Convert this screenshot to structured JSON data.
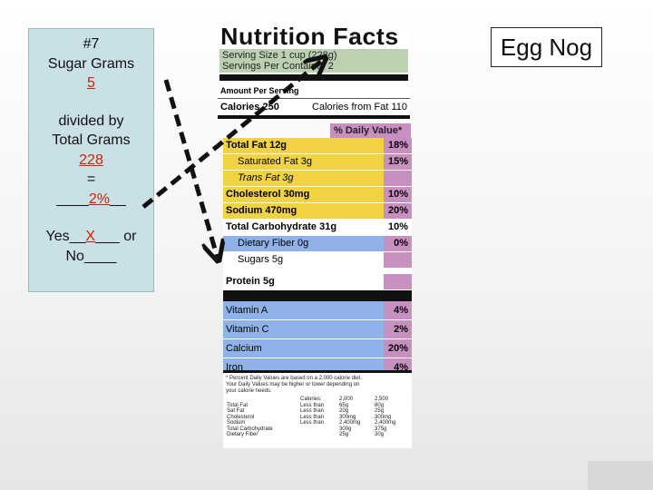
{
  "info": {
    "number": "#7",
    "line1": "Sugar Grams",
    "sugar": "5",
    "line2": "divided by",
    "line3": "Total Grams",
    "total": "228",
    "equals": "=",
    "blank_left": "____",
    "pct": "2%",
    "blank_right": "__",
    "yes_pre": "Yes__",
    "yes_mark": "X",
    "yes_post": "___ or",
    "no": "No____"
  },
  "product_name": "Egg Nog",
  "label": {
    "title": "Nutrition Facts",
    "serving_size": "Serving Size 1 cup (228g)",
    "servings_per_container": "Servings Per Container 2",
    "amount_per_serving": "Amount Per Serving",
    "calories": "Calories 250",
    "calories_fat": "Calories from Fat 110",
    "daily_value_head": "% Daily Value*",
    "nutrients": [
      {
        "name": "Total Fat 12g",
        "pct": "18%",
        "color": "#f1d243",
        "indent": false,
        "bold": true
      },
      {
        "name": "Saturated Fat 3g",
        "pct": "15%",
        "color": "#f1d243",
        "indent": true,
        "bold": false
      },
      {
        "name": "Trans Fat 3g",
        "pct": "",
        "color": "#f1d243",
        "indent": true,
        "bold": false
      },
      {
        "name": "Cholesterol 30mg",
        "pct": "10%",
        "color": "#f1d243",
        "indent": false,
        "bold": true
      },
      {
        "name": "Sodium 470mg",
        "pct": "20%",
        "color": "#f1d243",
        "indent": false,
        "bold": true
      },
      {
        "name": "Total Carbohydrate 31g",
        "pct": "10%",
        "color": "#ffffff",
        "indent": false,
        "bold": true
      },
      {
        "name": "Dietary Fiber 0g",
        "pct": "0%",
        "color": "#8fb3e8",
        "indent": true,
        "bold": false
      },
      {
        "name": "Sugars 5g",
        "pct": "",
        "color": "#ffffff",
        "indent": true,
        "bold": false
      },
      {
        "name": "Protein 5g",
        "pct": "",
        "color": "#ffffff",
        "indent": false,
        "bold": true
      }
    ],
    "vitamins": [
      {
        "name": "Vitamin A",
        "pct": "4%"
      },
      {
        "name": "Vitamin C",
        "pct": "2%"
      },
      {
        "name": "Calcium",
        "pct": "20%"
      },
      {
        "name": "Iron",
        "pct": "4%"
      }
    ],
    "footnote1": "* Percent Daily Values are based on a 2,000 calorie diet.",
    "footnote2": "Your Daily Values may be higher or lower depending on",
    "footnote3": "your calorie needs.",
    "table_head": [
      "",
      "Calories:",
      "2,000",
      "2,500"
    ],
    "table_rows": [
      [
        "Total Fat",
        "Less than",
        "65g",
        "80g"
      ],
      [
        "Sat Fat",
        "Less than",
        "20g",
        "25g"
      ],
      [
        "Cholesterol",
        "Less than",
        "300mg",
        "300mg"
      ],
      [
        "Sodium",
        "Less than",
        "2,400mg",
        "2,400mg"
      ],
      [
        "Total Carbohydrate",
        "",
        "300g",
        "375g"
      ],
      [
        "Dietary Fiber",
        "",
        "25g",
        "30g"
      ]
    ]
  },
  "colors": {
    "infobox": "#c9e0e6",
    "yellow": "#f1d243",
    "blue": "#8fb3e8",
    "purple": "#c88fc1",
    "serving_green": "#bcd1b2"
  }
}
